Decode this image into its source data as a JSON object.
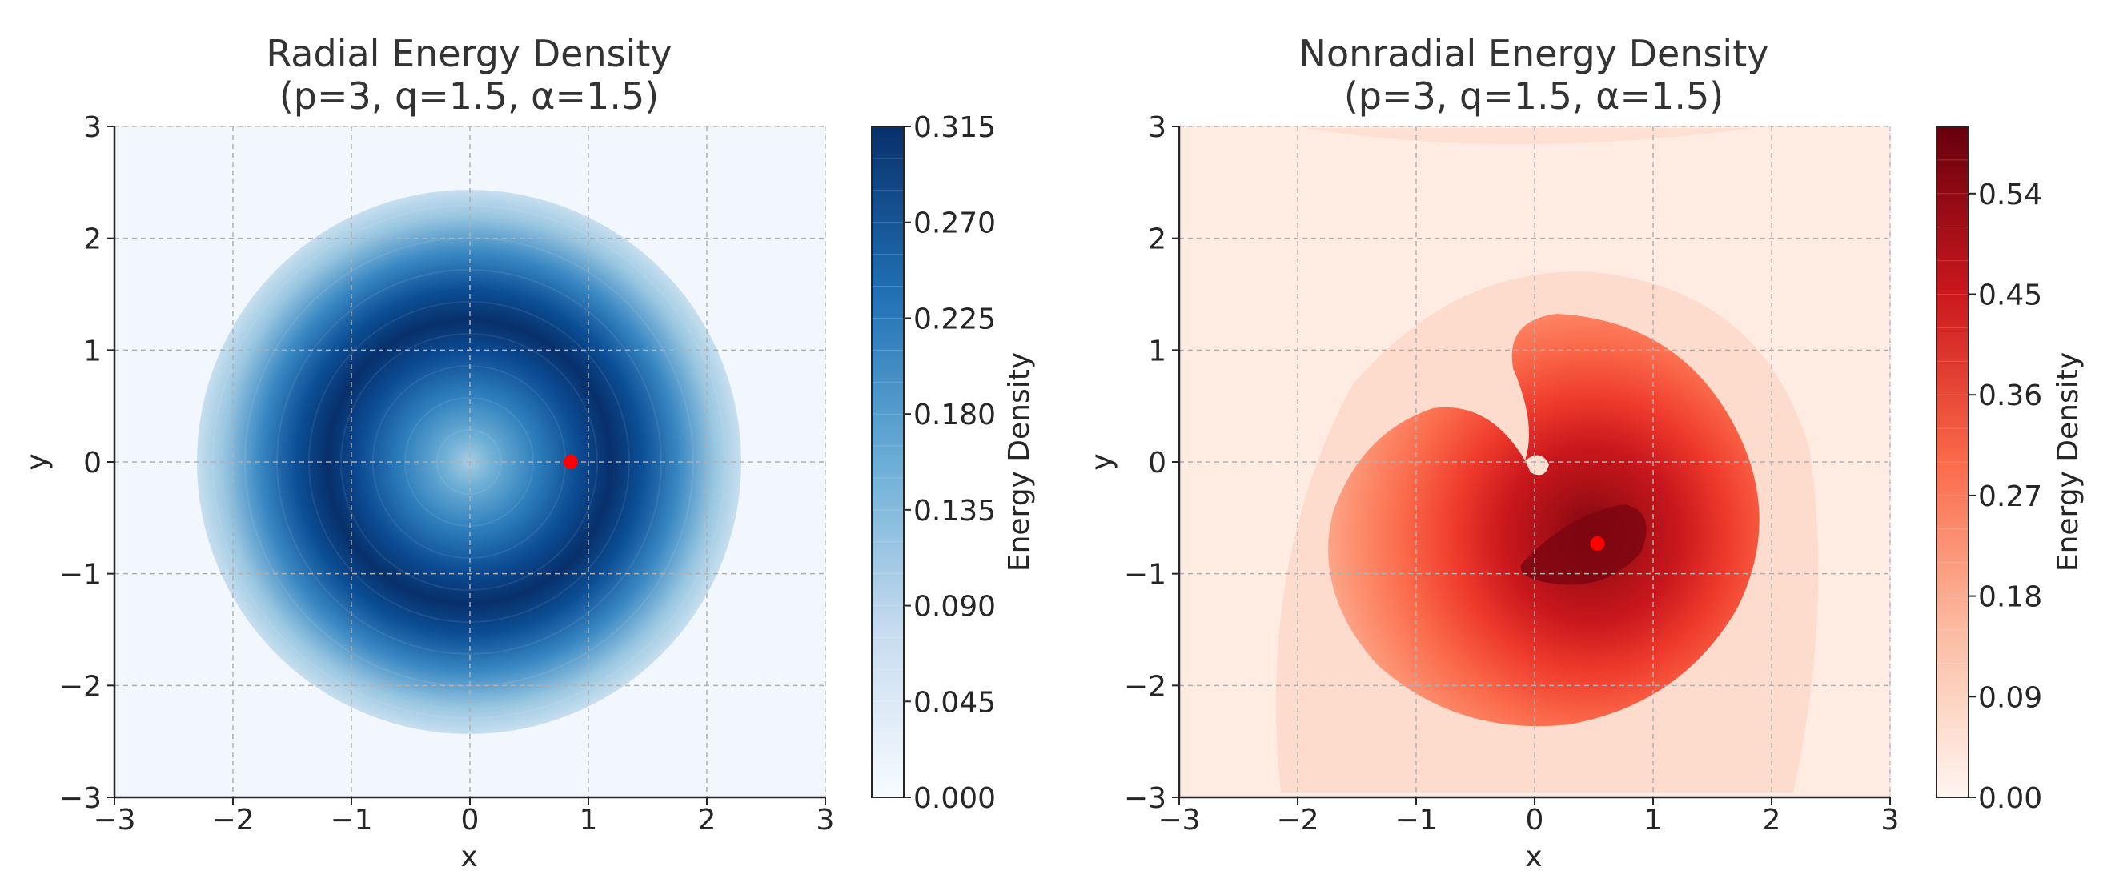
{
  "chart_data": [
    {
      "type": "contour",
      "title_line1": "Radial Energy Density",
      "title_line2": "(p=3, q=1.5, α=1.5)",
      "xlabel": "x",
      "ylabel": "y",
      "xlim": [
        -3,
        3
      ],
      "ylim": [
        -3,
        3
      ],
      "xticks": [
        -3,
        -2,
        -1,
        0,
        1,
        2,
        3
      ],
      "yticks": [
        -3,
        -2,
        -1,
        0,
        1,
        2,
        3
      ],
      "grid": true,
      "colormap": "Blues",
      "colorbar": {
        "label": "Energy Density",
        "min": 0.0,
        "max": 0.315,
        "levels": 21,
        "ticks": [
          "0.000",
          "0.045",
          "0.090",
          "0.135",
          "0.180",
          "0.225",
          "0.270",
          "0.315"
        ]
      },
      "marker": {
        "x": 0.85,
        "y": 0.0,
        "color": "#ff0000"
      }
    },
    {
      "type": "contour",
      "title_line1": "Nonradial Energy Density",
      "title_line2": "(p=3, q=1.5, α=1.5)",
      "xlabel": "x",
      "ylabel": "y",
      "xlim": [
        -3,
        3
      ],
      "ylim": [
        -3,
        3
      ],
      "xticks": [
        -3,
        -2,
        -1,
        0,
        1,
        2,
        3
      ],
      "yticks": [
        -3,
        -2,
        -1,
        0,
        1,
        2,
        3
      ],
      "grid": true,
      "colormap": "Reds",
      "colorbar": {
        "label": "Energy Density",
        "min": 0.0,
        "max": 0.6,
        "levels": 20,
        "ticks": [
          "0.00",
          "0.09",
          "0.18",
          "0.27",
          "0.36",
          "0.45",
          "0.54"
        ]
      },
      "marker": {
        "x": 0.53,
        "y": -0.73,
        "color": "#ff0000"
      }
    }
  ]
}
